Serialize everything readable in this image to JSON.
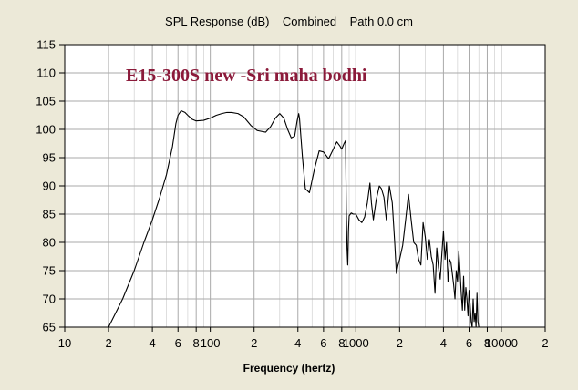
{
  "chart_data": {
    "type": "line",
    "title": "SPL Response (dB)    Combined    Path 0.0 cm",
    "xlabel": "Frequency (hertz)",
    "ylabel": "",
    "x_scale": "log",
    "xlim": [
      10,
      20000
    ],
    "ylim": [
      65,
      115
    ],
    "grid": true,
    "x_tick_labels": [
      {
        "value": 10,
        "label": "10"
      },
      {
        "value": 20,
        "label": "2"
      },
      {
        "value": 40,
        "label": "4"
      },
      {
        "value": 60,
        "label": "6"
      },
      {
        "value": 80,
        "label": "8"
      },
      {
        "value": 100,
        "label": "100"
      },
      {
        "value": 200,
        "label": "2"
      },
      {
        "value": 400,
        "label": "4"
      },
      {
        "value": 600,
        "label": "6"
      },
      {
        "value": 800,
        "label": "8"
      },
      {
        "value": 1000,
        "label": "1000"
      },
      {
        "value": 2000,
        "label": "2"
      },
      {
        "value": 4000,
        "label": "4"
      },
      {
        "value": 6000,
        "label": "6"
      },
      {
        "value": 8000,
        "label": "8"
      },
      {
        "value": 10000,
        "label": "10000"
      },
      {
        "value": 20000,
        "label": "2"
      }
    ],
    "y_ticks": [
      115,
      110,
      105,
      100,
      95,
      90,
      85,
      80,
      75,
      70,
      65
    ],
    "annotation": "E15-300S new -Sri maha bodhi",
    "annotation_color": "#8b1a3a",
    "line_color": "#000000",
    "plot_background": "#ffffff",
    "grid_color": "#c8c8c8",
    "series": [
      {
        "x": [
          20,
          25,
          30,
          35,
          40,
          45,
          50,
          55,
          58,
          60,
          63,
          67,
          70,
          75,
          80,
          90,
          100,
          110,
          120,
          130,
          140,
          155,
          170,
          190,
          210,
          240,
          260,
          280,
          300,
          320,
          340,
          360,
          380,
          395,
          405,
          410,
          430,
          450,
          480,
          520,
          560,
          600,
          650,
          700,
          740,
          780,
          800,
          830,
          850,
          860,
          870,
          880,
          890,
          900,
          930,
          960,
          1000,
          1050,
          1100,
          1150,
          1200,
          1250,
          1280,
          1320,
          1380,
          1450,
          1500,
          1560,
          1620,
          1700,
          1780,
          1850,
          1900,
          1950,
          2000,
          2100,
          2200,
          2300,
          2400,
          2500,
          2600,
          2700,
          2800,
          2900,
          3000,
          3100,
          3200,
          3300,
          3400,
          3500,
          3600,
          3700,
          3800,
          3900,
          4000,
          4100,
          4200,
          4300,
          4400,
          4500,
          4600,
          4700,
          4800,
          4900,
          5000,
          5100,
          5200,
          5300,
          5400,
          5500,
          5600,
          5700,
          5800,
          5900,
          6000,
          6100,
          6200,
          6300,
          6400,
          6500,
          6600,
          6700,
          6800,
          6900,
          7000
        ],
        "y": [
          65,
          70,
          75,
          80,
          84,
          88,
          92,
          97,
          101,
          102.5,
          103.3,
          103,
          102.5,
          101.8,
          101.5,
          101.6,
          102,
          102.5,
          102.8,
          103,
          103,
          102.8,
          102.2,
          100.7,
          99.8,
          99.5,
          100.5,
          102,
          102.8,
          102,
          100,
          98.5,
          98.8,
          101.5,
          102.8,
          102,
          95,
          89.5,
          88.8,
          93,
          96.2,
          96,
          94.8,
          96.5,
          97.8,
          97,
          96.5,
          97.5,
          98,
          86,
          79,
          76,
          82,
          84.7,
          85.2,
          85,
          85,
          84,
          83.5,
          84.5,
          87,
          90.5,
          87,
          84,
          87.5,
          90,
          89.5,
          88,
          84,
          90,
          87,
          80,
          74.5,
          76,
          77,
          79.5,
          84,
          88.5,
          84,
          80,
          79.5,
          77,
          76,
          83.5,
          81,
          77,
          80.5,
          77.5,
          76,
          71,
          79,
          75.5,
          73.5,
          78,
          82,
          77,
          80,
          73,
          77,
          76.5,
          74.5,
          72.5,
          70,
          75,
          73,
          78.5,
          75,
          71,
          68,
          74,
          68,
          72,
          70,
          67,
          71.5,
          69,
          66,
          65,
          70,
          66,
          67.5,
          65,
          71,
          66,
          65
        ]
      }
    ]
  }
}
